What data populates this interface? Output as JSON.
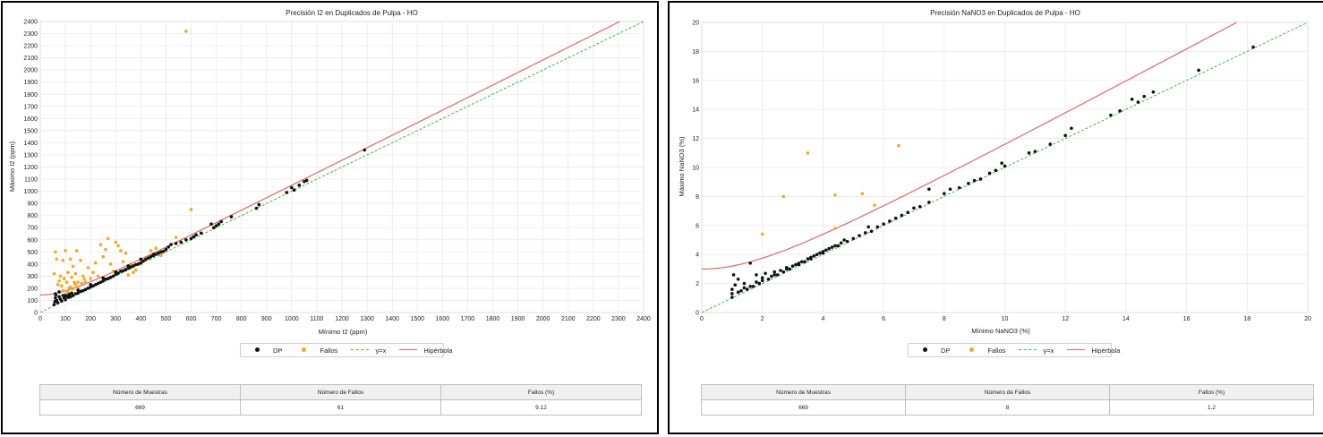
{
  "colors": {
    "dp": "#111111",
    "fallos": "#f5a623",
    "identity": "#4caf50",
    "hyperbola": "#e06666",
    "grid": "#e6e6e6"
  },
  "chart_data": [
    {
      "type": "scatter",
      "title": "Precisión I2 en Duplicados de Pulpa - HO",
      "xlabel": "Mínimo I2 (ppm)",
      "ylabel": "Máximo I2 (ppm)",
      "xlim": [
        0,
        2400
      ],
      "ylim": [
        0,
        2400
      ],
      "xticks": [
        "0",
        "100",
        "200",
        "300",
        "400",
        "500",
        "600",
        "700",
        "800",
        "900",
        "1000",
        "1100",
        "1200",
        "1300",
        "1400",
        "1500",
        "1600",
        "1700",
        "1800",
        "1900",
        "2000",
        "2100",
        "2200",
        "2300",
        "2400"
      ],
      "yticks": [
        "0",
        "100",
        "200",
        "300",
        "400",
        "500",
        "600",
        "700",
        "800",
        "900",
        "1000",
        "1100",
        "1200",
        "1300",
        "1400",
        "1500",
        "1600",
        "1700",
        "1800",
        "1900",
        "2000",
        "2100",
        "2200",
        "2300",
        "2400"
      ],
      "grid": true,
      "legend_position": "bottom",
      "hyperbola": {
        "intercept": 145,
        "slope": 1.039
      },
      "series": [
        {
          "name": "DP",
          "points": [
            [
              55,
              65
            ],
            [
              58,
              90
            ],
            [
              60,
              120
            ],
            [
              62,
              145
            ],
            [
              65,
              100
            ],
            [
              70,
              80
            ],
            [
              75,
              130
            ],
            [
              80,
              110
            ],
            [
              85,
              95
            ],
            [
              90,
              140
            ],
            [
              95,
              120
            ],
            [
              100,
              105
            ],
            [
              105,
              135
            ],
            [
              110,
              125
            ],
            [
              115,
              150
            ],
            [
              120,
              130
            ],
            [
              125,
              160
            ],
            [
              130,
              140
            ],
            [
              140,
              155
            ],
            [
              150,
              160
            ],
            [
              160,
              175
            ],
            [
              170,
              180
            ],
            [
              180,
              190
            ],
            [
              190,
              200
            ],
            [
              200,
              210
            ],
            [
              210,
              220
            ],
            [
              220,
              230
            ],
            [
              230,
              240
            ],
            [
              240,
              250
            ],
            [
              250,
              260
            ],
            [
              260,
              275
            ],
            [
              270,
              280
            ],
            [
              280,
              290
            ],
            [
              290,
              300
            ],
            [
              300,
              315
            ],
            [
              310,
              325
            ],
            [
              320,
              340
            ],
            [
              330,
              345
            ],
            [
              340,
              355
            ],
            [
              350,
              365
            ],
            [
              360,
              375
            ],
            [
              370,
              385
            ],
            [
              380,
              395
            ],
            [
              390,
              400
            ],
            [
              400,
              410
            ],
            [
              410,
              425
            ],
            [
              420,
              440
            ],
            [
              430,
              450
            ],
            [
              440,
              460
            ],
            [
              450,
              470
            ],
            [
              460,
              480
            ],
            [
              470,
              490
            ],
            [
              480,
              500
            ],
            [
              490,
              505
            ],
            [
              500,
              520
            ],
            [
              510,
              540
            ],
            [
              520,
              560
            ],
            [
              540,
              570
            ],
            [
              560,
              580
            ],
            [
              580,
              600
            ],
            [
              600,
              610
            ],
            [
              610,
              625
            ],
            [
              620,
              640
            ],
            [
              640,
              655
            ],
            [
              680,
              730
            ],
            [
              690,
              700
            ],
            [
              700,
              715
            ],
            [
              710,
              730
            ],
            [
              720,
              750
            ],
            [
              760,
              790
            ],
            [
              860,
              860
            ],
            [
              870,
              890
            ],
            [
              980,
              990
            ],
            [
              1000,
              1030
            ],
            [
              1010,
              1010
            ],
            [
              1030,
              1050
            ],
            [
              1050,
              1080
            ],
            [
              1060,
              1090
            ],
            [
              1290,
              1340
            ],
            [
              150,
              185
            ],
            [
              200,
              230
            ],
            [
              250,
              285
            ],
            [
              300,
              335
            ],
            [
              350,
              385
            ],
            [
              400,
              440
            ],
            [
              450,
              480
            ],
            [
              100,
              140
            ],
            [
              60,
              155
            ],
            [
              75,
              170
            ]
          ]
        },
        {
          "name": "Fallos",
          "points": [
            [
              55,
              320
            ],
            [
              60,
              500
            ],
            [
              65,
              440
            ],
            [
              70,
              230
            ],
            [
              75,
              260
            ],
            [
              80,
              300
            ],
            [
              85,
              220
            ],
            [
              90,
              430
            ],
            [
              95,
              280
            ],
            [
              100,
              510
            ],
            [
              105,
              250
            ],
            [
              110,
              330
            ],
            [
              115,
              200
            ],
            [
              120,
              440
            ],
            [
              125,
              290
            ],
            [
              130,
              380
            ],
            [
              135,
              250
            ],
            [
              140,
              320
            ],
            [
              145,
              510
            ],
            [
              150,
              210
            ],
            [
              160,
              430
            ],
            [
              170,
              300
            ],
            [
              180,
              250
            ],
            [
              190,
              370
            ],
            [
              200,
              280
            ],
            [
              210,
              330
            ],
            [
              220,
              410
            ],
            [
              230,
              300
            ],
            [
              240,
              560
            ],
            [
              250,
              460
            ],
            [
              260,
              520
            ],
            [
              270,
              610
            ],
            [
              280,
              400
            ],
            [
              290,
              340
            ],
            [
              300,
              580
            ],
            [
              310,
              550
            ],
            [
              320,
              510
            ],
            [
              330,
              420
            ],
            [
              340,
              490
            ],
            [
              350,
              310
            ],
            [
              360,
              400
            ],
            [
              370,
              330
            ],
            [
              380,
              350
            ],
            [
              400,
              400
            ],
            [
              420,
              430
            ],
            [
              440,
              510
            ],
            [
              460,
              530
            ],
            [
              480,
              470
            ],
            [
              520,
              560
            ],
            [
              540,
              620
            ],
            [
              580,
              2320
            ],
            [
              600,
              850
            ],
            [
              90,
              180
            ],
            [
              100,
              150
            ],
            [
              110,
              170
            ],
            [
              120,
              210
            ],
            [
              130,
              195
            ],
            [
              140,
              230
            ],
            [
              150,
              250
            ],
            [
              165,
              240
            ],
            [
              175,
              275
            ]
          ]
        },
        {
          "name": "y=x",
          "line": [
            [
              0,
              0
            ],
            [
              2400,
              2400
            ]
          ]
        },
        {
          "name": "Hipérbola"
        }
      ],
      "stats": {
        "headers": [
          "Número de Muestras",
          "Número de Fallos",
          "Fallos (%)"
        ],
        "values": [
          "669",
          "61",
          "9.12"
        ]
      }
    },
    {
      "type": "scatter",
      "title": "Precisión NaNO3 en Duplicados de Pulpa - HO",
      "xlabel": "Mínimo NaNO3 (%)",
      "ylabel": "Máximo NaNO3 (%)",
      "xlim": [
        0,
        20
      ],
      "ylim": [
        0,
        20
      ],
      "xticks": [
        "0",
        "2",
        "4",
        "6",
        "8",
        "10",
        "12",
        "14",
        "16",
        "18",
        "20"
      ],
      "yticks": [
        "0",
        "2",
        "4",
        "6",
        "8",
        "10",
        "12",
        "14",
        "16",
        "18",
        "20"
      ],
      "grid": true,
      "legend_position": "bottom",
      "hyperbola": {
        "a": 1.12,
        "b": 3.0
      },
      "series": [
        {
          "name": "DP",
          "points": [
            [
              1.0,
              1.05
            ],
            [
              1.0,
              1.3
            ],
            [
              1.0,
              1.6
            ],
            [
              1.05,
              2.6
            ],
            [
              1.1,
              1.9
            ],
            [
              1.2,
              2.3
            ],
            [
              1.3,
              1.5
            ],
            [
              1.4,
              2.0
            ],
            [
              1.5,
              1.6
            ],
            [
              1.6,
              3.4
            ],
            [
              1.7,
              1.8
            ],
            [
              1.8,
              2.6
            ],
            [
              1.9,
              2.0
            ],
            [
              2.0,
              2.2
            ],
            [
              2.1,
              2.7
            ],
            [
              2.2,
              2.3
            ],
            [
              2.3,
              2.5
            ],
            [
              2.4,
              2.8
            ],
            [
              2.5,
              2.6
            ],
            [
              2.6,
              2.9
            ],
            [
              2.7,
              2.8
            ],
            [
              2.8,
              3.1
            ],
            [
              2.9,
              3.0
            ],
            [
              3.0,
              3.2
            ],
            [
              3.1,
              3.3
            ],
            [
              3.2,
              3.4
            ],
            [
              3.3,
              3.5
            ],
            [
              3.4,
              3.5
            ],
            [
              3.5,
              3.7
            ],
            [
              3.6,
              3.8
            ],
            [
              3.7,
              3.9
            ],
            [
              3.8,
              4.0
            ],
            [
              3.9,
              4.1
            ],
            [
              4.0,
              4.2
            ],
            [
              4.1,
              4.3
            ],
            [
              4.2,
              4.4
            ],
            [
              4.3,
              4.5
            ],
            [
              4.4,
              4.6
            ],
            [
              4.5,
              4.6
            ],
            [
              4.6,
              4.8
            ],
            [
              4.7,
              5.0
            ],
            [
              4.8,
              4.9
            ],
            [
              5.0,
              5.1
            ],
            [
              5.2,
              5.3
            ],
            [
              5.4,
              5.5
            ],
            [
              5.5,
              5.9
            ],
            [
              5.6,
              5.6
            ],
            [
              5.8,
              5.9
            ],
            [
              6.0,
              6.1
            ],
            [
              6.2,
              6.3
            ],
            [
              6.4,
              6.5
            ],
            [
              6.6,
              6.7
            ],
            [
              6.8,
              6.9
            ],
            [
              7.0,
              7.2
            ],
            [
              7.2,
              7.3
            ],
            [
              7.5,
              7.6
            ],
            [
              7.5,
              8.5
            ],
            [
              8.0,
              8.2
            ],
            [
              8.2,
              8.5
            ],
            [
              8.5,
              8.6
            ],
            [
              8.8,
              8.9
            ],
            [
              9.0,
              9.1
            ],
            [
              9.2,
              9.2
            ],
            [
              9.5,
              9.6
            ],
            [
              9.7,
              9.8
            ],
            [
              9.9,
              10.3
            ],
            [
              10.0,
              10.1
            ],
            [
              10.8,
              11.0
            ],
            [
              11.0,
              11.1
            ],
            [
              11.5,
              11.6
            ],
            [
              12.0,
              12.2
            ],
            [
              12.2,
              12.7
            ],
            [
              13.5,
              13.6
            ],
            [
              13.8,
              13.9
            ],
            [
              14.2,
              14.7
            ],
            [
              14.4,
              14.5
            ],
            [
              14.6,
              14.9
            ],
            [
              14.9,
              15.2
            ],
            [
              16.4,
              16.7
            ],
            [
              18.2,
              18.3
            ],
            [
              1.2,
              1.4
            ],
            [
              1.4,
              1.7
            ],
            [
              1.6,
              1.8
            ],
            [
              1.8,
              2.1
            ],
            [
              2.0,
              2.4
            ],
            [
              2.4,
              2.6
            ],
            [
              2.8,
              3.0
            ],
            [
              3.2,
              3.3
            ],
            [
              3.6,
              3.7
            ],
            [
              4.0,
              4.1
            ]
          ]
        },
        {
          "name": "Fallos",
          "points": [
            [
              2.0,
              5.4
            ],
            [
              2.7,
              8.0
            ],
            [
              3.5,
              11.0
            ],
            [
              4.4,
              8.1
            ],
            [
              4.4,
              5.8
            ],
            [
              5.3,
              8.2
            ],
            [
              5.7,
              7.4
            ],
            [
              6.5,
              11.5
            ]
          ]
        },
        {
          "name": "y=x",
          "line": [
            [
              0,
              0
            ],
            [
              20,
              20
            ]
          ]
        },
        {
          "name": "Hipérbola"
        }
      ],
      "stats": {
        "headers": [
          "Número de Muestras",
          "Número de Fallos",
          "Fallos (%)"
        ],
        "values": [
          "669",
          "8",
          "1.2"
        ]
      }
    }
  ]
}
